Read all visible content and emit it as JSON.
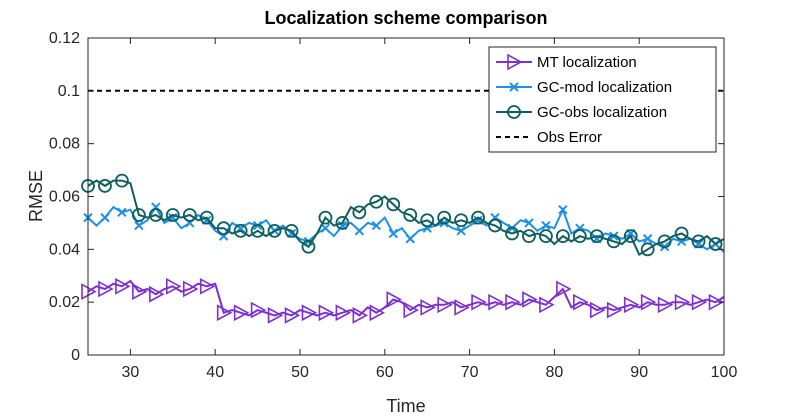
{
  "chart_data": {
    "type": "line",
    "title": "Localization scheme comparison",
    "xlabel": "Time",
    "ylabel": "RMSE",
    "xlim": [
      25,
      100
    ],
    "ylim": [
      0,
      0.12
    ],
    "xticks": [
      30,
      40,
      50,
      60,
      70,
      80,
      90,
      100
    ],
    "xtick_labels": [
      "30",
      "40",
      "50",
      "60",
      "70",
      "80",
      "90",
      "100"
    ],
    "yticks": [
      0,
      0.02,
      0.04,
      0.06,
      0.08,
      0.1,
      0.12
    ],
    "ytick_labels": [
      "0",
      "0.02",
      "0.04",
      "0.06",
      "0.08",
      "0.1",
      "0.12"
    ],
    "legend_position": "top-right",
    "series": [
      {
        "name": "MT localization",
        "color": "#7e2fd0",
        "marker": "triangle-right",
        "x": [
          25,
          26,
          27,
          28,
          29,
          30,
          31,
          32,
          33,
          34,
          35,
          36,
          37,
          38,
          39,
          40,
          41,
          42,
          43,
          44,
          45,
          46,
          47,
          48,
          49,
          50,
          51,
          52,
          53,
          54,
          55,
          56,
          57,
          58,
          59,
          60,
          61,
          62,
          63,
          64,
          65,
          66,
          67,
          68,
          69,
          70,
          71,
          72,
          73,
          74,
          75,
          76,
          77,
          78,
          79,
          80,
          81,
          82,
          83,
          84,
          85,
          86,
          87,
          88,
          89,
          90,
          91,
          92,
          93,
          94,
          95,
          96,
          97,
          98,
          99,
          100
        ],
        "values": [
          0.024,
          0.026,
          0.025,
          0.027,
          0.026,
          0.028,
          0.024,
          0.025,
          0.023,
          0.025,
          0.026,
          0.024,
          0.025,
          0.027,
          0.026,
          0.027,
          0.016,
          0.017,
          0.016,
          0.015,
          0.017,
          0.016,
          0.015,
          0.016,
          0.015,
          0.017,
          0.016,
          0.015,
          0.016,
          0.015,
          0.016,
          0.017,
          0.015,
          0.018,
          0.016,
          0.018,
          0.021,
          0.02,
          0.017,
          0.019,
          0.018,
          0.019,
          0.019,
          0.02,
          0.018,
          0.019,
          0.02,
          0.019,
          0.02,
          0.019,
          0.02,
          0.019,
          0.021,
          0.02,
          0.019,
          0.022,
          0.025,
          0.018,
          0.02,
          0.019,
          0.017,
          0.018,
          0.017,
          0.018,
          0.019,
          0.018,
          0.02,
          0.019,
          0.019,
          0.02,
          0.02,
          0.019,
          0.02,
          0.021,
          0.02,
          0.022
        ]
      },
      {
        "name": "GC-mod localization",
        "color": "#1e90e8",
        "marker": "x",
        "x": [
          25,
          26,
          27,
          28,
          29,
          30,
          31,
          32,
          33,
          34,
          35,
          36,
          37,
          38,
          39,
          40,
          41,
          42,
          43,
          44,
          45,
          46,
          47,
          48,
          49,
          50,
          51,
          52,
          53,
          54,
          55,
          56,
          57,
          58,
          59,
          60,
          61,
          62,
          63,
          64,
          65,
          66,
          67,
          68,
          69,
          70,
          71,
          72,
          73,
          74,
          75,
          76,
          77,
          78,
          79,
          80,
          81,
          82,
          83,
          84,
          85,
          86,
          87,
          88,
          89,
          90,
          91,
          92,
          93,
          94,
          95,
          96,
          97,
          98,
          99,
          100
        ],
        "values": [
          0.052,
          0.049,
          0.052,
          0.056,
          0.054,
          0.055,
          0.049,
          0.051,
          0.056,
          0.05,
          0.052,
          0.048,
          0.05,
          0.053,
          0.051,
          0.047,
          0.045,
          0.05,
          0.048,
          0.05,
          0.049,
          0.051,
          0.047,
          0.049,
          0.046,
          0.044,
          0.043,
          0.046,
          0.048,
          0.045,
          0.049,
          0.05,
          0.047,
          0.05,
          0.049,
          0.052,
          0.046,
          0.048,
          0.044,
          0.047,
          0.048,
          0.049,
          0.05,
          0.048,
          0.047,
          0.049,
          0.051,
          0.049,
          0.052,
          0.05,
          0.048,
          0.051,
          0.05,
          0.047,
          0.049,
          0.048,
          0.055,
          0.046,
          0.048,
          0.047,
          0.044,
          0.046,
          0.045,
          0.044,
          0.046,
          0.043,
          0.044,
          0.042,
          0.041,
          0.044,
          0.043,
          0.044,
          0.042,
          0.04,
          0.042,
          0.039
        ]
      },
      {
        "name": "GC-obs localization",
        "color": "#0e5e5e",
        "marker": "circle",
        "x": [
          25,
          26,
          27,
          28,
          29,
          30,
          31,
          32,
          33,
          34,
          35,
          36,
          37,
          38,
          39,
          40,
          41,
          42,
          43,
          44,
          45,
          46,
          47,
          48,
          49,
          50,
          51,
          52,
          53,
          54,
          55,
          56,
          57,
          58,
          59,
          60,
          61,
          62,
          63,
          64,
          65,
          66,
          67,
          68,
          69,
          70,
          71,
          72,
          73,
          74,
          75,
          76,
          77,
          78,
          79,
          80,
          81,
          82,
          83,
          84,
          85,
          86,
          87,
          88,
          89,
          90,
          91,
          92,
          93,
          94,
          95,
          96,
          97,
          98,
          99,
          100
        ],
        "values": [
          0.064,
          0.066,
          0.064,
          0.066,
          0.066,
          0.065,
          0.053,
          0.052,
          0.053,
          0.051,
          0.053,
          0.052,
          0.053,
          0.051,
          0.052,
          0.048,
          0.048,
          0.046,
          0.047,
          0.045,
          0.047,
          0.045,
          0.047,
          0.048,
          0.047,
          0.043,
          0.041,
          0.046,
          0.052,
          0.049,
          0.05,
          0.056,
          0.054,
          0.057,
          0.058,
          0.06,
          0.057,
          0.054,
          0.053,
          0.05,
          0.051,
          0.049,
          0.052,
          0.05,
          0.051,
          0.05,
          0.052,
          0.05,
          0.049,
          0.047,
          0.046,
          0.047,
          0.045,
          0.046,
          0.045,
          0.042,
          0.045,
          0.043,
          0.045,
          0.044,
          0.045,
          0.044,
          0.043,
          0.042,
          0.045,
          0.038,
          0.04,
          0.042,
          0.043,
          0.045,
          0.046,
          0.044,
          0.043,
          0.045,
          0.042,
          0.044
        ]
      },
      {
        "name": "Obs Error",
        "color": "#000000",
        "marker": "none",
        "dashed": true,
        "x": [
          25,
          100
        ],
        "values": [
          0.1,
          0.1
        ]
      }
    ]
  }
}
